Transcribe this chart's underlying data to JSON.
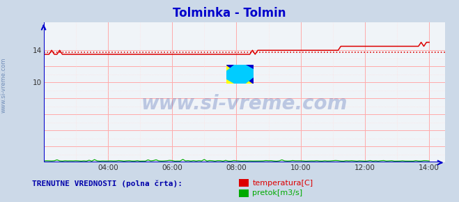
{
  "title": "Tolminka - Tolmin",
  "title_color": "#0000cc",
  "title_fontsize": 12,
  "bg_color": "#ccd9e8",
  "plot_bg_color": "#f0f4f8",
  "xlim": [
    0,
    150
  ],
  "ylim": [
    0,
    17.5
  ],
  "yticks": [
    0,
    2,
    4,
    6,
    8,
    10,
    12,
    14
  ],
  "xtick_labels": [
    "04:00",
    "06:00",
    "08:00",
    "10:00",
    "12:00",
    "14:00"
  ],
  "xtick_positions": [
    24,
    48,
    72,
    96,
    120,
    144
  ],
  "grid_color": "#ffaaaa",
  "grid_minor_color": "#ffdddd",
  "temp_avg_val": 13.73,
  "watermark": "www.si-vreme.com",
  "watermark_color": "#3355aa",
  "watermark_alpha": 0.28,
  "sidebar_text": "www.si-vreme.com",
  "sidebar_color": "#5577aa",
  "legend_label1": "temperatura[C]",
  "legend_label2": "pretok[m3/s]",
  "legend_color1": "#dd0000",
  "legend_color2": "#00aa00",
  "legend_text": "TRENUTNE VREDNOSTI (polna črta):",
  "legend_text_color": "#0000aa",
  "axis_color": "#0000cc",
  "logo_yellow": "#ffff00",
  "logo_blue": "#0000cc",
  "logo_cyan": "#00ccff"
}
